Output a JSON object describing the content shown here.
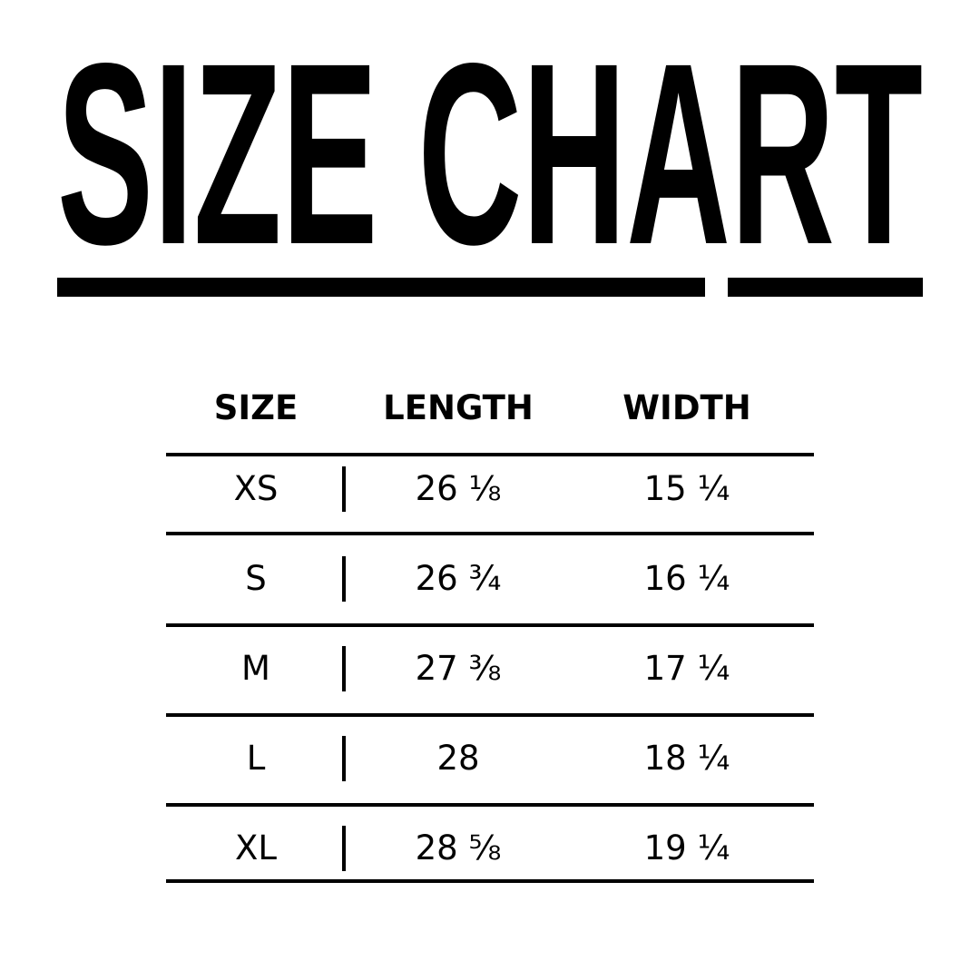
{
  "title": "SIZE CHART",
  "table": {
    "headers": [
      "SIZE",
      "LENGTH",
      "WIDTH"
    ],
    "rows": [
      {
        "size": "XS",
        "length": "26 ⅛",
        "width": "15 ¼"
      },
      {
        "size": "S",
        "length": "26 ¾",
        "width": "16 ¼"
      },
      {
        "size": "M",
        "length": "27 ⅜",
        "width": "17 ¼"
      },
      {
        "size": "L",
        "length": "28",
        "width": "18 ¼"
      },
      {
        "size": "XL",
        "length": "28 ⅝",
        "width": "19 ¼"
      }
    ]
  },
  "colors": {
    "text": "#000000",
    "background": "#ffffff"
  }
}
